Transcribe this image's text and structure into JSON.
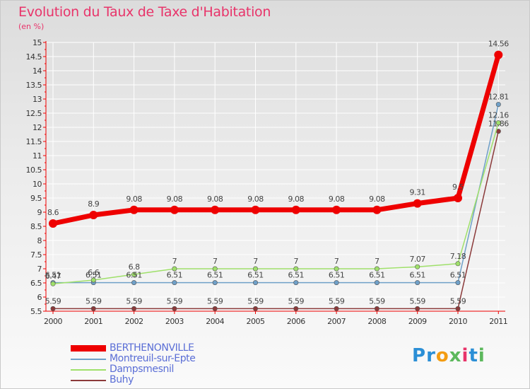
{
  "title": "Evolution du Taux de Taxe d'Habitation",
  "subtitle": "(en %)",
  "logo": {
    "letters": [
      "P",
      "r",
      "o",
      "x",
      "i",
      "t",
      "i"
    ],
    "colors": [
      "#2b8fd6",
      "#2b8fd6",
      "#f39c12",
      "#5cb85c",
      "#e8346a",
      "#2b8fd6",
      "#5cb85c"
    ]
  },
  "chart_data": {
    "type": "line",
    "title": "Evolution du Taux de Taxe d'Habitation",
    "ylabel": "(en %)",
    "xlabel": "",
    "ylim": [
      5.5,
      15
    ],
    "yticks": [
      "5.5",
      "6",
      "6.5",
      "7",
      "7.5",
      "8",
      "8.5",
      "9",
      "9.5",
      "10",
      "10.5",
      "11",
      "11.5",
      "12",
      "12.5",
      "13",
      "13.5",
      "14",
      "14.5",
      "15"
    ],
    "categories": [
      "2000",
      "2001",
      "2002",
      "2003",
      "2004",
      "2005",
      "2006",
      "2007",
      "2008",
      "2009",
      "2010",
      "2011"
    ],
    "series": [
      {
        "name": "BERTHENONVILLE",
        "color": "#ee0000",
        "values": [
          8.6,
          8.9,
          9.08,
          9.08,
          9.08,
          9.08,
          9.08,
          9.08,
          9.08,
          9.31,
          9.5,
          14.56
        ],
        "labels": [
          "8.6",
          "8.9",
          "9.08",
          "9.08",
          "9.08",
          "9.08",
          "9.08",
          "9.08",
          "9.08",
          "9.31",
          "9.5",
          "14.56"
        ]
      },
      {
        "name": "Montreuil-sur-Epte",
        "color": "#6fa0c8",
        "values": [
          6.51,
          6.51,
          6.51,
          6.51,
          6.51,
          6.51,
          6.51,
          6.51,
          6.51,
          6.51,
          6.51,
          12.81
        ],
        "labels": [
          "6.51",
          "6.51",
          "6.51",
          "6.51",
          "6.51",
          "6.51",
          "6.51",
          "6.51",
          "6.51",
          "6.51",
          "6.51",
          "12.81"
        ]
      },
      {
        "name": "Dampsmesnil",
        "color": "#9fe06a",
        "values": [
          6.47,
          6.6,
          6.8,
          7,
          7,
          7,
          7,
          7,
          7,
          7.07,
          7.18,
          12.16
        ],
        "labels": [
          "6.47",
          "6.6",
          "6.8",
          "7",
          "7",
          "7",
          "7",
          "7",
          "7",
          "7.07",
          "7.18",
          "12.16"
        ]
      },
      {
        "name": "Buhy",
        "color": "#8b3a3a",
        "values": [
          5.59,
          5.59,
          5.59,
          5.59,
          5.59,
          5.59,
          5.59,
          5.59,
          5.59,
          5.59,
          5.59,
          11.86
        ],
        "labels": [
          "5.59",
          "5.59",
          "5.59",
          "5.59",
          "5.59",
          "5.59",
          "5.59",
          "5.59",
          "5.59",
          "5.59",
          "5.59",
          "11.86"
        ]
      }
    ],
    "grid": true,
    "legend": "bottom-left"
  }
}
